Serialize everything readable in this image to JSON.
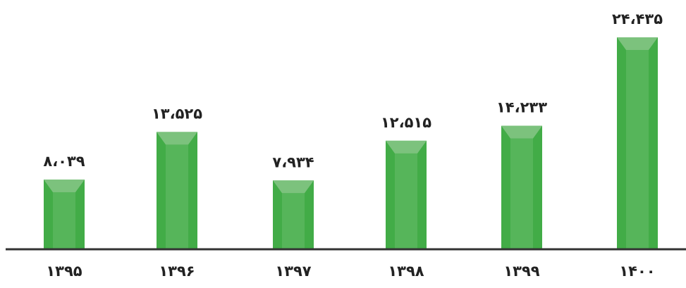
{
  "chart_data": {
    "type": "bar",
    "categories": [
      "۱۳۹۵",
      "۱۳۹۶",
      "۱۳۹۷",
      "۱۳۹۸",
      "۱۳۹۹",
      "۱۴۰۰"
    ],
    "values": [
      8039,
      13525,
      7934,
      12515,
      14233,
      24435
    ],
    "value_labels": [
      "۸،۰۳۹",
      "۱۳،۵۲۵",
      "۷،۹۳۴",
      "۱۲،۵۱۵",
      "۱۴،۲۳۳",
      "۲۴،۴۳۵"
    ],
    "title": "",
    "xlabel": "",
    "ylabel": "",
    "ylim": [
      0,
      24435
    ],
    "grid": false,
    "legend": "none",
    "colors": {
      "bar_front": "#56b55a",
      "bar_side": "#42ac47",
      "bar_top": "#7cc27d",
      "axis": "#333333",
      "text": "#222222"
    }
  }
}
